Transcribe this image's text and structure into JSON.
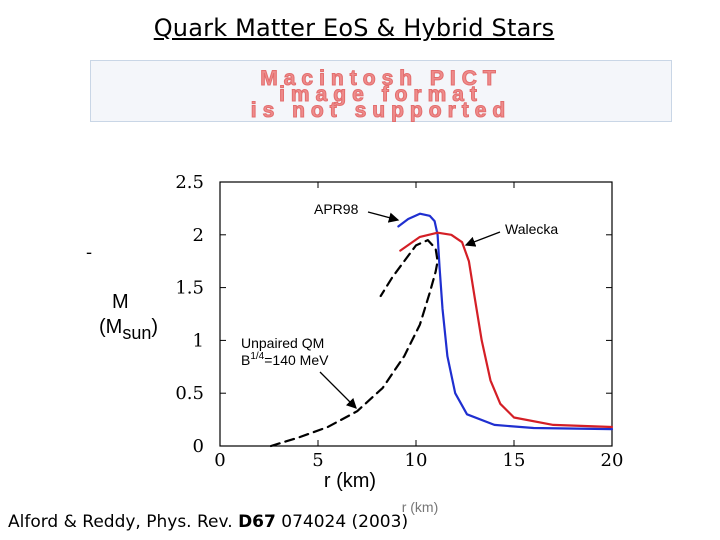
{
  "slide": {
    "title": "Quark Matter EoS & Hybrid Stars",
    "pict_placeholder": [
      "Macintosh PICT",
      "image format",
      "is not supported"
    ],
    "citation": {
      "prefix": "Alford & Reddy, Phys. Rev. ",
      "volume": "D67",
      "suffix": " 074024 (2003)"
    },
    "stray_mark": "-"
  },
  "chart_data": {
    "type": "line",
    "title": "",
    "xlabel": "r (km)",
    "xlabel_ghost": "r (km)",
    "ylabel": "M",
    "ylabel_unit": "(M",
    "ylabel_sub": "sun",
    "ylabel_close": ")",
    "xlim": [
      0,
      20
    ],
    "ylim": [
      0,
      2.5
    ],
    "xticks": [
      "0",
      "5",
      "10",
      "15",
      "20"
    ],
    "yticks": [
      "0",
      "0.5",
      "1",
      "1.5",
      "2",
      "2.5"
    ],
    "colors": {
      "APR98": "#1f2fd0",
      "Walecka": "#d41f26",
      "Unpaired QM": "#000000"
    },
    "series": [
      {
        "name": "APR98",
        "style": "solid",
        "x": [
          20,
          16,
          14,
          12.6,
          12,
          11.6,
          11.35,
          11.2,
          11.1,
          10.95,
          10.7,
          10.2,
          9.6,
          9.1
        ],
        "y": [
          0.16,
          0.17,
          0.2,
          0.3,
          0.5,
          0.85,
          1.3,
          1.7,
          2.0,
          2.13,
          2.18,
          2.2,
          2.15,
          2.08
        ]
      },
      {
        "name": "Walecka",
        "style": "solid",
        "x": [
          20,
          17,
          15,
          14.3,
          13.8,
          13.35,
          13.0,
          12.7,
          12.35,
          11.8,
          11.1,
          10.2,
          9.2
        ],
        "y": [
          0.18,
          0.2,
          0.27,
          0.4,
          0.62,
          1.0,
          1.4,
          1.75,
          1.93,
          2.0,
          2.02,
          1.98,
          1.85
        ]
      },
      {
        "name": "Unpaired QM",
        "style": "dashed",
        "x": [
          2.6,
          4,
          5.5,
          7,
          8.3,
          9.4,
          10.2,
          10.7,
          11.0,
          11.1,
          11.0,
          10.6,
          10.0,
          9.4,
          8.8,
          8.2
        ],
        "y": [
          0.0,
          0.08,
          0.18,
          0.33,
          0.55,
          0.85,
          1.15,
          1.45,
          1.65,
          1.75,
          1.87,
          1.95,
          1.9,
          1.75,
          1.6,
          1.42
        ]
      }
    ],
    "annotations": {
      "apr98_label": "APR98",
      "walecka_label": "Walecka",
      "qm_label_line1": "Unpaired QM",
      "qm_label_b": "B",
      "qm_label_exp": "1/4",
      "qm_label_rest": "=140 MeV"
    }
  }
}
